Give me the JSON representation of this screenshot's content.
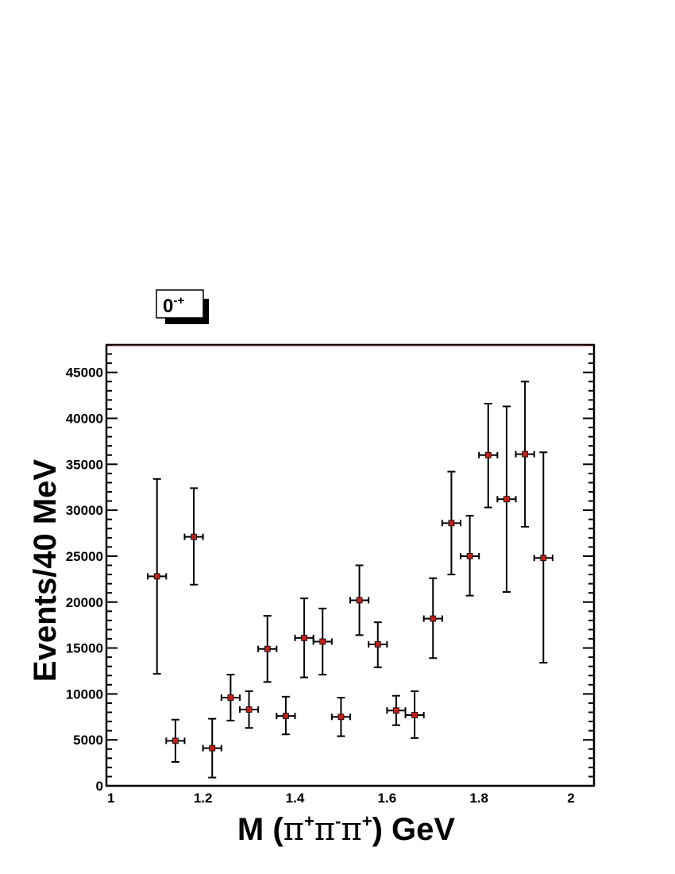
{
  "chart_data": {
    "type": "scatter",
    "legend_box": {
      "base": "0",
      "sup": "-+"
    },
    "xlabel": {
      "prefix": "M (",
      "s1": "π",
      "u1": "+",
      "s2": "π",
      "u2": "-",
      "s3": "π",
      "u3": "+",
      "suffix": ") GeV"
    },
    "ylabel": "Events/40 MeV",
    "xlim": [
      0.99,
      2.05
    ],
    "ylim": [
      0,
      48000
    ],
    "x_ticks": [
      1,
      1.2,
      1.4,
      1.6,
      1.8,
      2
    ],
    "x_tick_labels": [
      "1",
      "1.2",
      "1.4",
      "1.6",
      "1.8",
      "2"
    ],
    "y_ticks": [
      0,
      5000,
      10000,
      15000,
      20000,
      25000,
      30000,
      35000,
      40000,
      45000
    ],
    "y_tick_labels": [
      "0",
      "5000",
      "10000",
      "15000",
      "20000",
      "25000",
      "30000",
      "35000",
      "40000",
      "45000"
    ],
    "x_bin_half_width": 0.02,
    "marker_color": "#c0201a",
    "points": [
      {
        "x": 1.1,
        "y": 22800,
        "ylo": 12200,
        "yhi": 33400
      },
      {
        "x": 1.14,
        "y": 4900,
        "ylo": 2600,
        "yhi": 7200
      },
      {
        "x": 1.18,
        "y": 27100,
        "ylo": 21900,
        "yhi": 32400
      },
      {
        "x": 1.22,
        "y": 4100,
        "ylo": 900,
        "yhi": 7300
      },
      {
        "x": 1.26,
        "y": 9600,
        "ylo": 7100,
        "yhi": 12100
      },
      {
        "x": 1.3,
        "y": 8300,
        "ylo": 6300,
        "yhi": 10300
      },
      {
        "x": 1.34,
        "y": 14900,
        "ylo": 11300,
        "yhi": 18500
      },
      {
        "x": 1.38,
        "y": 7600,
        "ylo": 5600,
        "yhi": 9700
      },
      {
        "x": 1.42,
        "y": 16100,
        "ylo": 11800,
        "yhi": 20400
      },
      {
        "x": 1.46,
        "y": 15700,
        "ylo": 12100,
        "yhi": 19300
      },
      {
        "x": 1.5,
        "y": 7500,
        "ylo": 5400,
        "yhi": 9600
      },
      {
        "x": 1.54,
        "y": 20200,
        "ylo": 16400,
        "yhi": 24000
      },
      {
        "x": 1.58,
        "y": 15400,
        "ylo": 12900,
        "yhi": 17800
      },
      {
        "x": 1.62,
        "y": 8200,
        "ylo": 6600,
        "yhi": 9800
      },
      {
        "x": 1.66,
        "y": 7700,
        "ylo": 5200,
        "yhi": 10300
      },
      {
        "x": 1.7,
        "y": 18200,
        "ylo": 13900,
        "yhi": 22600
      },
      {
        "x": 1.74,
        "y": 28600,
        "ylo": 23000,
        "yhi": 34200
      },
      {
        "x": 1.78,
        "y": 25000,
        "ylo": 20700,
        "yhi": 29400
      },
      {
        "x": 1.82,
        "y": 36000,
        "ylo": 30300,
        "yhi": 41600
      },
      {
        "x": 1.86,
        "y": 31200,
        "ylo": 21100,
        "yhi": 41300
      },
      {
        "x": 1.9,
        "y": 36100,
        "ylo": 28200,
        "yhi": 44000
      },
      {
        "x": 1.94,
        "y": 24800,
        "ylo": 13400,
        "yhi": 36300
      }
    ]
  }
}
